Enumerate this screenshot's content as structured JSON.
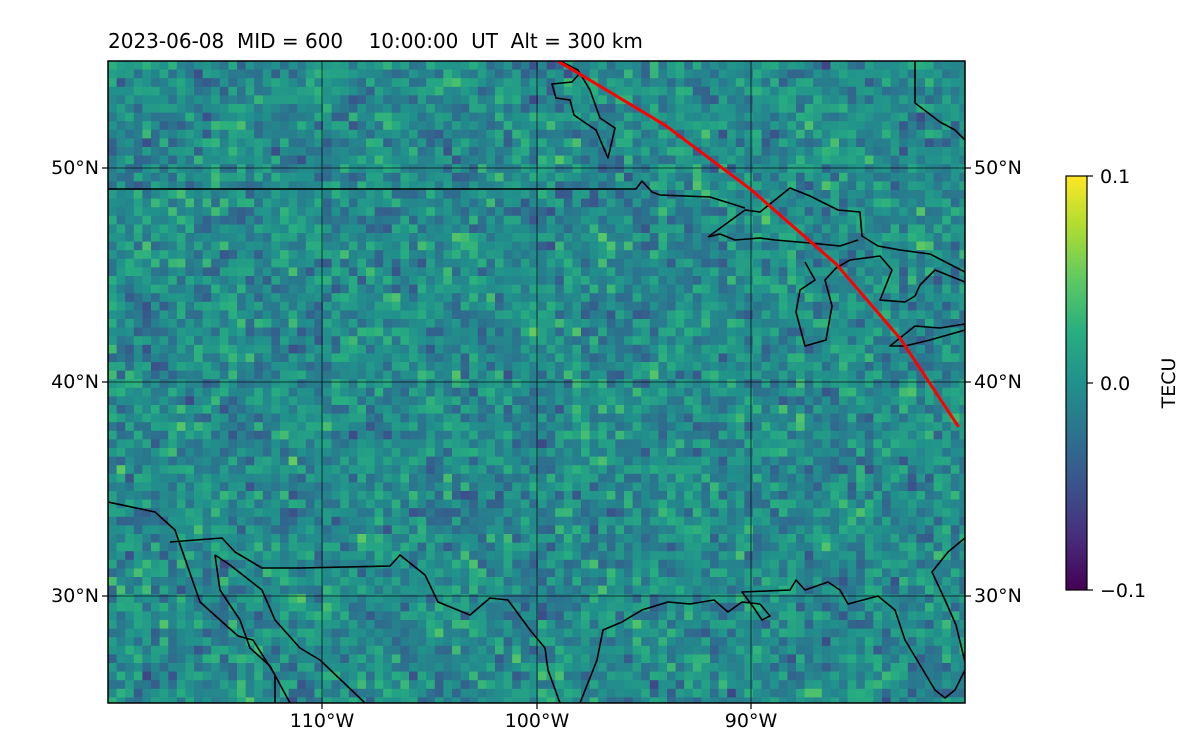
{
  "title": "2023-06-08  MID = 600    10:00:00  UT  Alt = 300 km",
  "map": {
    "longitude_range_deg": [
      -120,
      -80
    ],
    "latitude_range_deg": [
      25,
      55
    ],
    "x_tick_labels": [
      "110°W",
      "100°W",
      "90°W"
    ],
    "y_tick_labels_left": [
      "50°N",
      "40°N",
      "30°N"
    ],
    "y_tick_labels_right": [
      "50°N",
      "40°N",
      "30°N"
    ],
    "gridlines": true,
    "colormap": "viridis",
    "track_color": "#ff0000",
    "track_lonlat": [
      [
        -99,
        55
      ],
      [
        -94,
        52
      ],
      [
        -90,
        49
      ],
      [
        -86,
        45.5
      ],
      [
        -83,
        42
      ],
      [
        -80.3,
        37.9
      ]
    ]
  },
  "colorbar": {
    "label": "TECU",
    "tick_labels": [
      "0.1",
      "0.0",
      "−0.1"
    ],
    "range": [
      -0.1,
      0.1
    ]
  }
}
